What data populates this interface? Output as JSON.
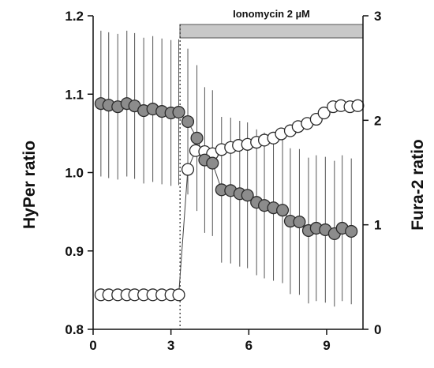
{
  "chart_data": {
    "type": "scatter",
    "x_ticks": [
      0,
      3,
      6,
      9
    ],
    "xlim": [
      0,
      10.4
    ],
    "left_axis": {
      "label": "HyPer ratio",
      "ylim": [
        0.8,
        1.2
      ],
      "ticks": [
        "0.8",
        "0.9",
        "1.0",
        "1.1",
        "1.2"
      ],
      "tick_values": [
        0.8,
        0.9,
        1.0,
        1.1,
        1.2
      ]
    },
    "right_axis": {
      "label": "Fura-2 ratio",
      "ylim": [
        0,
        3
      ],
      "ticks": [
        "0",
        "1",
        "2",
        "3"
      ],
      "tick_values": [
        0,
        1,
        2,
        3
      ]
    },
    "annotation": {
      "label": "Ionomycin 2 µM",
      "x_start": 3.35,
      "x_end": 10.4,
      "marker_x": 3.35
    },
    "series": [
      {
        "axis": "left",
        "marker": "filled",
        "color": "#8c8c8c",
        "points": [
          {
            "x": 0.3,
            "y": 1.088,
            "err": 0.093
          },
          {
            "x": 0.6,
            "y": 1.086,
            "err": 0.093
          },
          {
            "x": 0.95,
            "y": 1.084,
            "err": 0.093
          },
          {
            "x": 1.3,
            "y": 1.088,
            "err": 0.093
          },
          {
            "x": 1.6,
            "y": 1.085,
            "err": 0.093
          },
          {
            "x": 1.95,
            "y": 1.079,
            "err": 0.093
          },
          {
            "x": 2.3,
            "y": 1.081,
            "err": 0.093
          },
          {
            "x": 2.65,
            "y": 1.078,
            "err": 0.093
          },
          {
            "x": 3.0,
            "y": 1.076,
            "err": 0.093
          },
          {
            "x": 3.3,
            "y": 1.077,
            "err": 0.093
          },
          {
            "x": 3.65,
            "y": 1.065,
            "err": 0.093
          },
          {
            "x": 4.0,
            "y": 1.044,
            "err": 0.093
          },
          {
            "x": 4.3,
            "y": 1.016,
            "err": 0.093
          },
          {
            "x": 4.6,
            "y": 1.012,
            "err": 0.093
          },
          {
            "x": 4.95,
            "y": 0.978,
            "err": 0.093
          },
          {
            "x": 5.3,
            "y": 0.977,
            "err": 0.093
          },
          {
            "x": 5.65,
            "y": 0.973,
            "err": 0.093
          },
          {
            "x": 5.95,
            "y": 0.971,
            "err": 0.093
          },
          {
            "x": 6.3,
            "y": 0.962,
            "err": 0.093
          },
          {
            "x": 6.6,
            "y": 0.958,
            "err": 0.093
          },
          {
            "x": 6.95,
            "y": 0.955,
            "err": 0.093
          },
          {
            "x": 7.3,
            "y": 0.952,
            "err": 0.093
          },
          {
            "x": 7.6,
            "y": 0.938,
            "err": 0.093
          },
          {
            "x": 7.95,
            "y": 0.937,
            "err": 0.093
          },
          {
            "x": 8.3,
            "y": 0.926,
            "err": 0.093
          },
          {
            "x": 8.6,
            "y": 0.929,
            "err": 0.093
          },
          {
            "x": 8.95,
            "y": 0.927,
            "err": 0.093
          },
          {
            "x": 9.3,
            "y": 0.922,
            "err": 0.093
          },
          {
            "x": 9.6,
            "y": 0.929,
            "err": 0.093
          },
          {
            "x": 9.95,
            "y": 0.925,
            "err": 0.093
          }
        ]
      },
      {
        "axis": "right",
        "marker": "open",
        "color": "#ffffff",
        "points": [
          {
            "x": 0.3,
            "y": 0.33,
            "err": 0
          },
          {
            "x": 0.6,
            "y": 0.33,
            "err": 0
          },
          {
            "x": 0.95,
            "y": 0.33,
            "err": 0
          },
          {
            "x": 1.3,
            "y": 0.33,
            "err": 0
          },
          {
            "x": 1.6,
            "y": 0.33,
            "err": 0
          },
          {
            "x": 1.95,
            "y": 0.33,
            "err": 0
          },
          {
            "x": 2.3,
            "y": 0.33,
            "err": 0
          },
          {
            "x": 2.65,
            "y": 0.33,
            "err": 0
          },
          {
            "x": 3.0,
            "y": 0.33,
            "err": 0
          },
          {
            "x": 3.3,
            "y": 0.33,
            "err": 0
          },
          {
            "x": 3.65,
            "y": 1.53,
            "err": 0
          },
          {
            "x": 3.95,
            "y": 1.71,
            "err": 0
          },
          {
            "x": 4.3,
            "y": 1.7,
            "err": 0
          },
          {
            "x": 4.6,
            "y": 1.68,
            "err": 0
          },
          {
            "x": 4.95,
            "y": 1.72,
            "err": 0
          },
          {
            "x": 5.3,
            "y": 1.74,
            "err": 0
          },
          {
            "x": 5.6,
            "y": 1.76,
            "err": 0
          },
          {
            "x": 5.95,
            "y": 1.77,
            "err": 0
          },
          {
            "x": 6.3,
            "y": 1.79,
            "err": 0
          },
          {
            "x": 6.6,
            "y": 1.81,
            "err": 0
          },
          {
            "x": 6.95,
            "y": 1.83,
            "err": 0
          },
          {
            "x": 7.25,
            "y": 1.87,
            "err": 0
          },
          {
            "x": 7.6,
            "y": 1.9,
            "err": 0
          },
          {
            "x": 7.9,
            "y": 1.94,
            "err": 0
          },
          {
            "x": 8.25,
            "y": 1.97,
            "err": 0
          },
          {
            "x": 8.6,
            "y": 2.01,
            "err": 0
          },
          {
            "x": 8.9,
            "y": 2.07,
            "err": 0
          },
          {
            "x": 9.25,
            "y": 2.13,
            "err": 0
          },
          {
            "x": 9.55,
            "y": 2.14,
            "err": 0
          },
          {
            "x": 9.9,
            "y": 2.13,
            "err": 0
          },
          {
            "x": 10.2,
            "y": 2.14,
            "err": 0
          }
        ]
      }
    ]
  }
}
